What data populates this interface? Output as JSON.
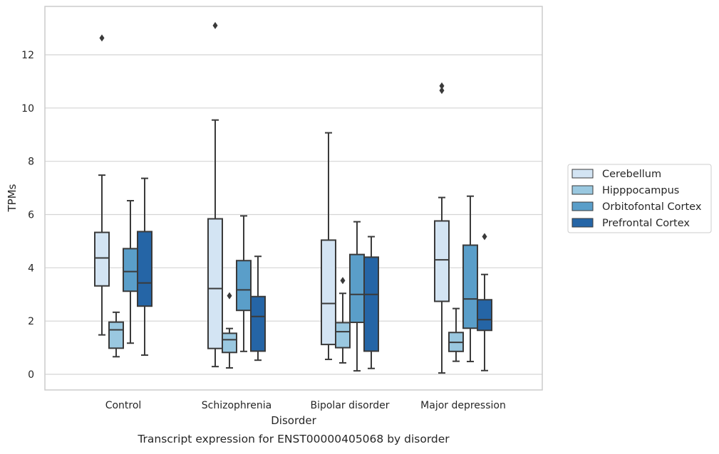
{
  "chart_data": {
    "type": "box",
    "title": "Transcript expression for ENST00000405068 by disorder",
    "xlabel": "Disorder",
    "ylabel": "TPMs",
    "categories": [
      "Control",
      "Schizophrenia",
      "Bipolar disorder",
      "Major depression"
    ],
    "ylim": [
      -0.55,
      13.8
    ],
    "yticks": [
      0,
      2,
      4,
      6,
      8,
      10,
      12
    ],
    "grid": "horizontal",
    "legend_position": "right",
    "series": [
      {
        "name": "Cerebellum",
        "color": "#d3e4f3",
        "boxes": [
          {
            "category": "Control",
            "whislo": 1.48,
            "q1": 3.32,
            "med": 4.37,
            "q3": 5.33,
            "whishi": 7.48,
            "fliers": [
              12.63
            ]
          },
          {
            "category": "Schizophrenia",
            "whislo": 0.29,
            "q1": 0.97,
            "med": 3.22,
            "q3": 5.84,
            "whishi": 9.55,
            "fliers": [
              13.1
            ]
          },
          {
            "category": "Bipolar disorder",
            "whislo": 0.56,
            "q1": 1.12,
            "med": 2.66,
            "q3": 5.04,
            "whishi": 9.07,
            "fliers": []
          },
          {
            "category": "Major depression",
            "whislo": 0.05,
            "q1": 2.74,
            "med": 4.3,
            "q3": 5.76,
            "whishi": 6.64,
            "fliers": [
              10.66,
              10.83
            ]
          }
        ]
      },
      {
        "name": "Hipppocampus",
        "color": "#9ac8e0",
        "boxes": [
          {
            "category": "Control",
            "whislo": 0.66,
            "q1": 0.98,
            "med": 1.67,
            "q3": 1.96,
            "whishi": 2.33,
            "fliers": []
          },
          {
            "category": "Schizophrenia",
            "whislo": 0.24,
            "q1": 0.82,
            "med": 1.3,
            "q3": 1.54,
            "whishi": 1.72,
            "fliers": [
              2.95
            ]
          },
          {
            "category": "Bipolar disorder",
            "whislo": 0.43,
            "q1": 1.0,
            "med": 1.6,
            "q3": 1.94,
            "whishi": 3.04,
            "fliers": [
              3.52
            ]
          },
          {
            "category": "Major depression",
            "whislo": 0.49,
            "q1": 0.86,
            "med": 1.2,
            "q3": 1.57,
            "whishi": 2.47,
            "fliers": []
          }
        ]
      },
      {
        "name": "Orbitofontal Cortex",
        "color": "#5a9ec9",
        "boxes": [
          {
            "category": "Control",
            "whislo": 1.17,
            "q1": 3.12,
            "med": 3.86,
            "q3": 4.72,
            "whishi": 6.52,
            "fliers": []
          },
          {
            "category": "Schizophrenia",
            "whislo": 0.86,
            "q1": 2.4,
            "med": 3.17,
            "q3": 4.27,
            "whishi": 5.95,
            "fliers": []
          },
          {
            "category": "Bipolar disorder",
            "whislo": 0.13,
            "q1": 1.95,
            "med": 3.0,
            "q3": 4.5,
            "whishi": 5.73,
            "fliers": []
          },
          {
            "category": "Major depression",
            "whislo": 0.48,
            "q1": 1.73,
            "med": 2.83,
            "q3": 4.85,
            "whishi": 6.69,
            "fliers": []
          }
        ]
      },
      {
        "name": "Prefrontal Cortex",
        "color": "#2565a6",
        "boxes": [
          {
            "category": "Control",
            "whislo": 0.72,
            "q1": 2.56,
            "med": 3.43,
            "q3": 5.36,
            "whishi": 7.36,
            "fliers": []
          },
          {
            "category": "Schizophrenia",
            "whislo": 0.53,
            "q1": 0.87,
            "med": 2.17,
            "q3": 2.92,
            "whishi": 4.43,
            "fliers": []
          },
          {
            "category": "Bipolar disorder",
            "whislo": 0.22,
            "q1": 0.87,
            "med": 3.0,
            "q3": 4.4,
            "whishi": 5.17,
            "fliers": []
          },
          {
            "category": "Major depression",
            "whislo": 0.14,
            "q1": 1.65,
            "med": 2.05,
            "q3": 2.8,
            "whishi": 3.75,
            "fliers": [
              5.17
            ]
          }
        ]
      }
    ]
  }
}
